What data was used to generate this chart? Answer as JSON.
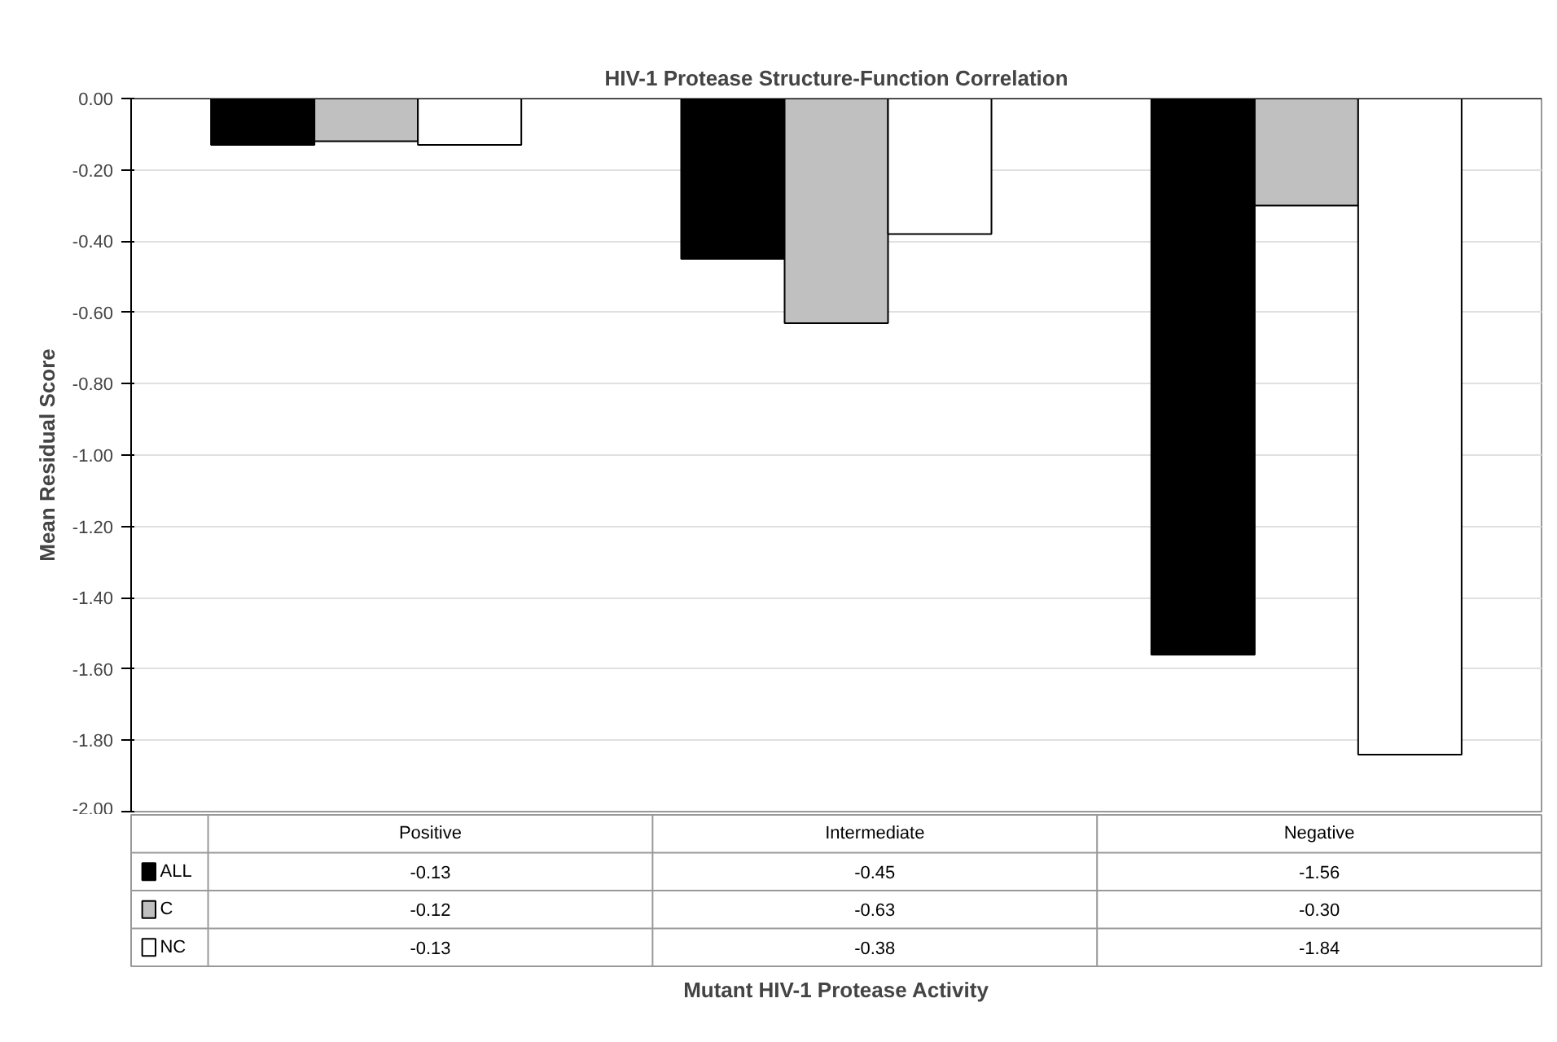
{
  "chart_data": {
    "type": "bar",
    "title": "HIV-1 Protease Structure-Function Correlation",
    "annotations": [
      "Mutant HIV-1 Protease Activity"
    ],
    "ylabel": "Mean Residual Score",
    "categories": [
      "Positive",
      "Intermediate",
      "Negative"
    ],
    "series": [
      {
        "name": "ALL",
        "color": "#000000",
        "values": [
          -0.13,
          -0.45,
          -1.56
        ],
        "value_labels": [
          "-0.13",
          "-0.45",
          "-1.56"
        ]
      },
      {
        "name": "C",
        "color": "#c0c0c0",
        "values": [
          -0.12,
          -0.63,
          -0.3
        ],
        "value_labels": [
          "-0.12",
          "-0.63",
          "-0.30"
        ]
      },
      {
        "name": "NC",
        "color": "#ffffff",
        "values": [
          -0.13,
          -0.38,
          -1.84
        ],
        "value_labels": [
          "-0.13",
          "-0.38",
          "-1.84"
        ]
      }
    ],
    "ylim": [
      -2.0,
      0.0
    ],
    "yticks": [
      {
        "value": 0,
        "label": "0.00"
      },
      {
        "value": -0.2,
        "label": "-0.20"
      },
      {
        "value": -0.4,
        "label": "-0.40"
      },
      {
        "value": -0.6,
        "label": "-0.60"
      },
      {
        "value": -0.8,
        "label": "-0.80"
      },
      {
        "value": -1.0,
        "label": "-1.00"
      },
      {
        "value": -1.2,
        "label": "-1.20"
      },
      {
        "value": -1.4,
        "label": "-1.40"
      },
      {
        "value": -1.6,
        "label": "-1.60"
      },
      {
        "value": -1.8,
        "label": "-1.80"
      },
      {
        "value": -2.0,
        "label": "-2.00"
      }
    ],
    "grid": "y",
    "legend": "bottom"
  }
}
